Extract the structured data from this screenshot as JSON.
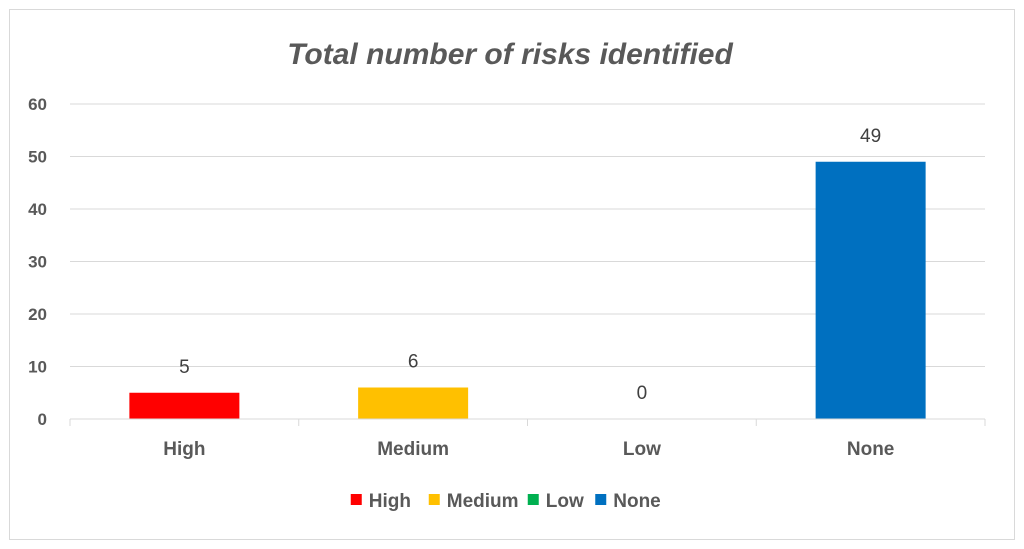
{
  "chart_data": {
    "type": "bar",
    "title": "Total number of risks identified",
    "categories": [
      "High",
      "Medium",
      "Low",
      "None"
    ],
    "values": [
      5,
      6,
      0,
      49
    ],
    "colors": [
      "#ff0000",
      "#ffc000",
      "#00b050",
      "#0070c0"
    ],
    "ylim": [
      0,
      60
    ],
    "yticks": [
      "0",
      "10",
      "20",
      "30",
      "40",
      "50",
      "60"
    ],
    "grid": true,
    "legend": {
      "position": "bottom",
      "entries": [
        "High",
        "Medium",
        "Low",
        "None"
      ]
    }
  }
}
